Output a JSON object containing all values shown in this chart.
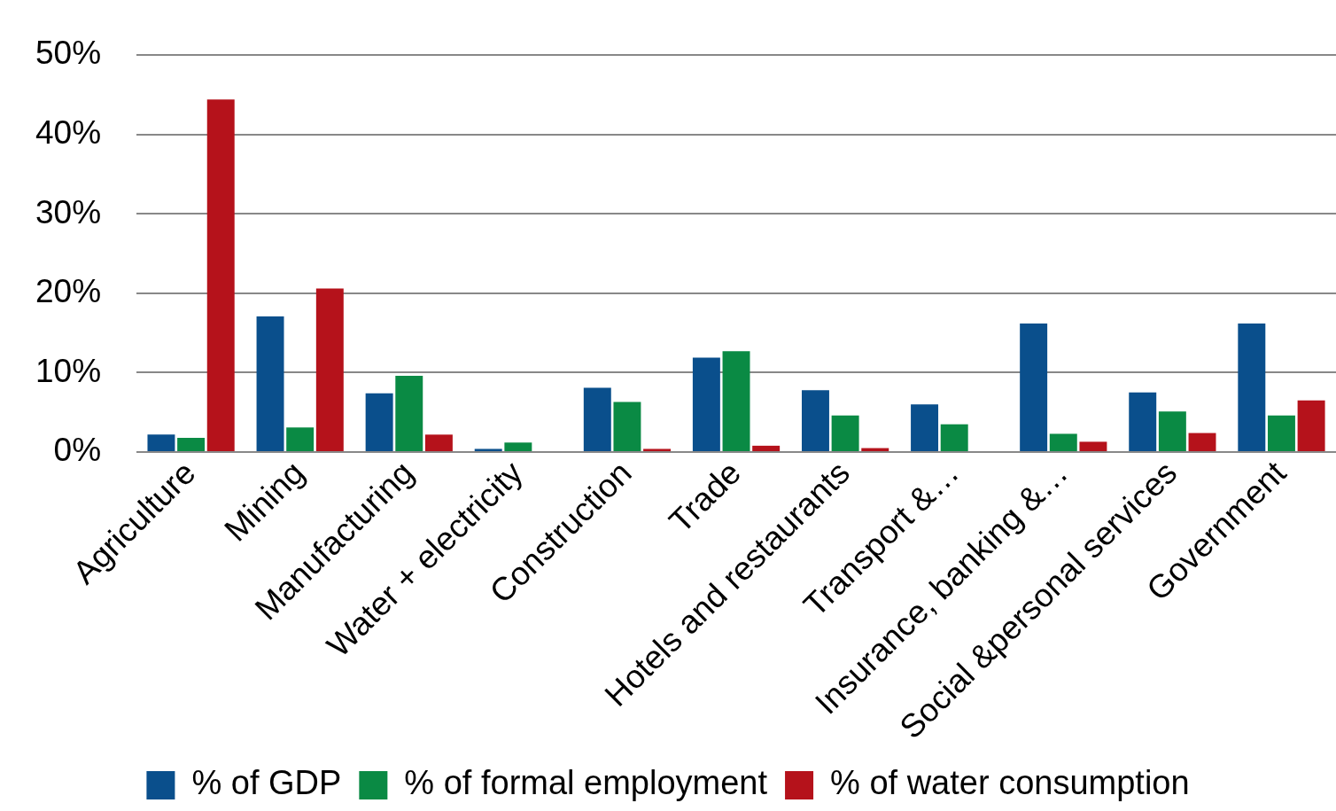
{
  "chart_data": {
    "type": "bar",
    "categories": [
      "Agriculture",
      "Mining",
      "Manufacturing",
      "Water + electricity",
      "Construction",
      "Trade",
      "Hotels and restaurants",
      "Transport &…",
      "Insurance, banking &…",
      "Social &personal services",
      "Government"
    ],
    "series": [
      {
        "name": "% of GDP",
        "color": "#0a4f8c",
        "values": [
          2.2,
          17.1,
          7.4,
          0.4,
          8.1,
          11.9,
          7.8,
          6.0,
          16.2,
          7.5,
          16.2
        ]
      },
      {
        "name": "% of formal employment",
        "color": "#0a8a44",
        "values": [
          1.8,
          3.1,
          9.6,
          1.2,
          6.3,
          12.7,
          4.6,
          3.5,
          2.3,
          5.1,
          4.6
        ]
      },
      {
        "name": "% of water consumption",
        "color": "#b5121b",
        "values": [
          44.4,
          20.6,
          2.2,
          0,
          0.4,
          0.8,
          0.5,
          0,
          1.3,
          2.4,
          6.5
        ]
      }
    ],
    "ylim": [
      0,
      50
    ],
    "yticks": [
      {
        "value": 0,
        "label": "0%"
      },
      {
        "value": 10,
        "label": "10%"
      },
      {
        "value": 20,
        "label": "20%"
      },
      {
        "value": 30,
        "label": "30%"
      },
      {
        "value": 40,
        "label": "40%"
      },
      {
        "value": 50,
        "label": "50%"
      }
    ],
    "grid": "y",
    "legend": "bottom"
  }
}
